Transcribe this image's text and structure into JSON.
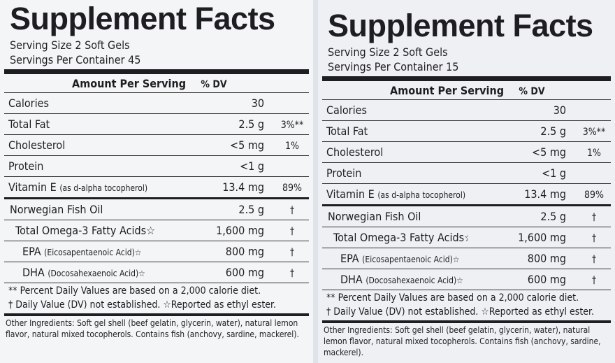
{
  "panels": [
    {
      "title": "Supplement Facts",
      "serving_size": "Serving Size 2 Soft Gels",
      "servings_per_container": "Servings Per Container 45",
      "header": {
        "amount": "Amount Per Serving",
        "dv": "% DV"
      },
      "rows": [
        {
          "name": "Calories",
          "amount": "30"
        },
        {
          "name": "Total Fat",
          "amount": "2.5 g",
          "dv": "3%**"
        },
        {
          "name": "Cholesterol",
          "amount": "<5 mg",
          "dv": "1%"
        },
        {
          "name": "Protein",
          "amount": "<1 g"
        },
        {
          "name": "Vitamin E",
          "note": "(as d-alpha tocopherol)",
          "amount": "13.4 mg",
          "dv": "89%"
        },
        {
          "name": "Norwegian Fish Oil",
          "amount": "2.5 g",
          "dv": "†"
        },
        {
          "name": "Total Omega-3 Fatty Acids☆",
          "amount": "1,600 mg",
          "dv": "†"
        },
        {
          "name": "EPA",
          "note": "(Eicosapentaenoic Acid)☆",
          "amount": "800 mg",
          "dv": "†"
        },
        {
          "name": "DHA",
          "note": "(Docosahexaenoic Acid)☆",
          "amount": "600 mg",
          "dv": "†"
        }
      ],
      "footnotes": [
        "** Percent Daily Values are based on a 2,000 calorie diet.",
        "† Daily Value (DV) not established.  ☆Reported as ethyl ester."
      ],
      "other_label": "Other Ingredients:",
      "other_text": "Soft gel shell (beef gelatin, glycerin, water), natural lemon flavor, natural mixed tocopherols. Contains fish (anchovy, sardine, mackerel)."
    },
    {
      "title": "Supplement Facts",
      "serving_size": "Serving Size 2 Soft Gels",
      "servings_per_container": "Servings Per Container 15",
      "header": {
        "amount": "Amount Per Serving",
        "dv": "% DV"
      },
      "rows": [
        {
          "name": "Calories",
          "amount": "30"
        },
        {
          "name": "Total Fat",
          "amount": "2.5 g",
          "dv": "3%**"
        },
        {
          "name": "Cholesterol",
          "amount": "<5 mg",
          "dv": "1%"
        },
        {
          "name": "Protein",
          "amount": "<1 g"
        },
        {
          "name": "Vitamin E",
          "note": "(as d-alpha tocopherol)",
          "amount": "13.4 mg",
          "dv": "89%"
        },
        {
          "name": "Norwegian Fish Oil",
          "amount": "2.5 g",
          "dv": "†"
        },
        {
          "name": "Total Omega-3 Fatty Acids☆",
          "amount": "1,600 mg",
          "dv": "†"
        },
        {
          "name": "EPA",
          "note": "(Eicosapentaenoic Acid)☆",
          "amount": "800 mg",
          "dv": "†"
        },
        {
          "name": "DHA",
          "note": "(Docosahexaenoic Acid)☆",
          "amount": "600 mg",
          "dv": "†"
        }
      ],
      "footnotes": [
        "** Percent Daily Values are based on a 2,000 calorie diet.",
        "† Daily Value (DV) not established.  ☆Reported as ethyl ester."
      ],
      "other_label": "Other Ingredients:",
      "other_text": "Soft gel shell (beef gelatin, glycerin, water), natural lemon flavor, natural mixed tocopherols. Contains fish (anchovy, sardine, mackerel)."
    }
  ]
}
